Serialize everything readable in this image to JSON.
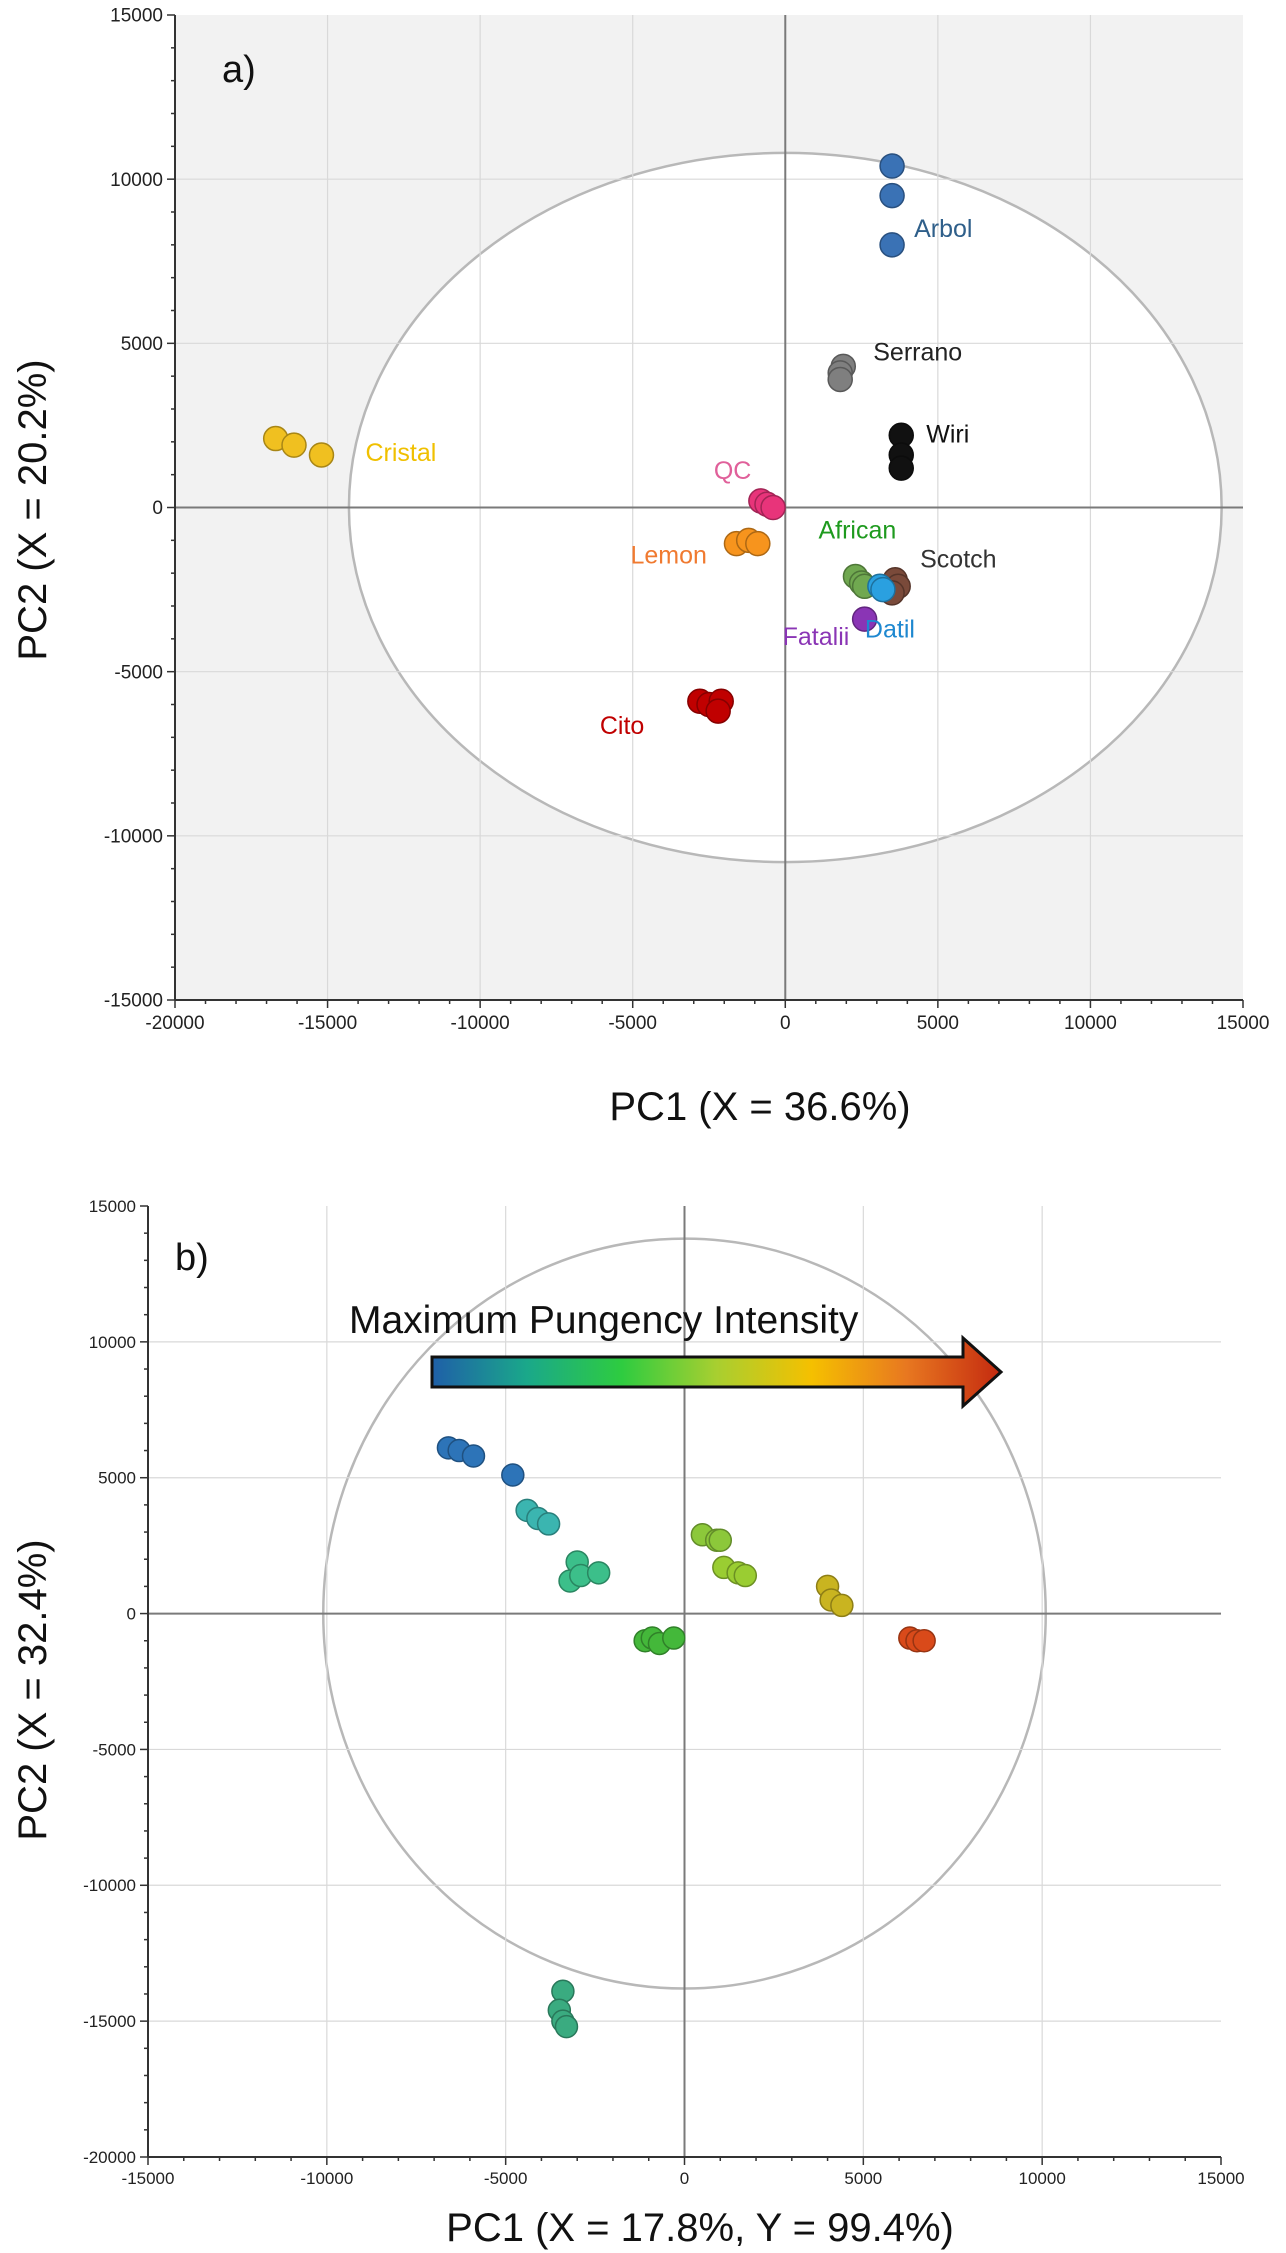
{
  "chart_data": [
    {
      "type": "scatter",
      "panel_label": "a)",
      "xlabel": "PC1 (X = 36.6%)",
      "ylabel": "PC2 (X = 20.2%)",
      "xlim": [
        -20000,
        15000
      ],
      "ylim": [
        -15000,
        15000
      ],
      "xticks": [
        -20000,
        -15000,
        -10000,
        -5000,
        0,
        5000,
        10000,
        15000
      ],
      "yticks": [
        -15000,
        -10000,
        -5000,
        0,
        5000,
        10000,
        15000
      ],
      "grid": true,
      "ellipse": {
        "rx": 14300,
        "ry": 10800
      },
      "series": [
        {
          "name": "Arbol",
          "color": "#3a72b5",
          "label_color": "#2f5f8a",
          "points": [
            [
              3500,
              10400
            ],
            [
              3500,
              9500
            ],
            [
              3500,
              8000
            ]
          ]
        },
        {
          "name": "Serrano",
          "color": "#7f7f7f",
          "label_color": "#222222",
          "points": [
            [
              1900,
              4300
            ],
            [
              1800,
              4100
            ],
            [
              1800,
              3900
            ]
          ]
        },
        {
          "name": "Wiri",
          "color": "#111111",
          "label_color": "#111111",
          "points": [
            [
              3800,
              2200
            ],
            [
              3800,
              1600
            ],
            [
              3800,
              1200
            ]
          ]
        },
        {
          "name": "Cristal",
          "color": "#f0c020",
          "label_color": "#f0c000",
          "points": [
            [
              -16700,
              2100
            ],
            [
              -16100,
              1900
            ],
            [
              -15200,
              1600
            ]
          ]
        },
        {
          "name": "QC",
          "color": "#e8347a",
          "label_color": "#e0609a",
          "points": [
            [
              -800,
              200
            ],
            [
              -600,
              100
            ],
            [
              -400,
              0
            ]
          ]
        },
        {
          "name": "Lemon",
          "color": "#f7941d",
          "label_color": "#f07a30",
          "points": [
            [
              -1600,
              -1100
            ],
            [
              -1200,
              -1000
            ],
            [
              -900,
              -1100
            ]
          ]
        },
        {
          "name": "African",
          "color": "#70a850",
          "label_color": "#1e9a1e",
          "points": [
            [
              2300,
              -2100
            ],
            [
              2500,
              -2300
            ],
            [
              2600,
              -2400
            ]
          ]
        },
        {
          "name": "Scotch",
          "color": "#7a4a3a",
          "label_color": "#333333",
          "points": [
            [
              3600,
              -2200
            ],
            [
              3700,
              -2400
            ],
            [
              3500,
              -2600
            ]
          ]
        },
        {
          "name": "Datil",
          "color": "#2aa0e0",
          "label_color": "#1e88d0",
          "points": [
            [
              3100,
              -2400
            ],
            [
              3200,
              -2500
            ]
          ]
        },
        {
          "name": "Fatalii",
          "color": "#8a35b5",
          "label_color": "#8a35b5",
          "points": [
            [
              2600,
              -3400
            ]
          ]
        },
        {
          "name": "Cito",
          "color": "#c00000",
          "label_color": "#c00000",
          "points": [
            [
              -2800,
              -5900
            ],
            [
              -2500,
              -6000
            ],
            [
              -2100,
              -5900
            ],
            [
              -2200,
              -6200
            ]
          ]
        }
      ]
    },
    {
      "type": "scatter",
      "panel_label": "b)",
      "xlabel": "PC1 (X = 17.8%, Y = 99.4%)",
      "ylabel": "PC2 (X = 32.4%)",
      "xlim": [
        -15000,
        15000
      ],
      "ylim": [
        -20000,
        15000
      ],
      "xticks": [
        -15000,
        -10000,
        -5000,
        0,
        5000,
        10000,
        15000
      ],
      "yticks": [
        -20000,
        -15000,
        -10000,
        -5000,
        0,
        5000,
        10000,
        15000
      ],
      "grid": true,
      "ellipse": {
        "rx": 10100,
        "ry": 13800
      },
      "annotation": "Maximum Pungency Intensity",
      "gradient_colors": [
        "#1f5fa8",
        "#1aa88a",
        "#2ecc40",
        "#a8cf30",
        "#f5c000",
        "#e87820",
        "#c42a10"
      ],
      "series": [
        {
          "color": "#2d74b8",
          "points": [
            [
              -6600,
              6100
            ],
            [
              -6300,
              6000
            ],
            [
              -5900,
              5800
            ]
          ]
        },
        {
          "color": "#2d74b8",
          "points": [
            [
              -4800,
              5100
            ]
          ]
        },
        {
          "color": "#3bb5b0",
          "points": [
            [
              -4400,
              3800
            ],
            [
              -4100,
              3500
            ],
            [
              -3800,
              3300
            ]
          ]
        },
        {
          "color": "#3cbf8a",
          "points": [
            [
              -3000,
              1900
            ],
            [
              -3200,
              1200
            ],
            [
              -2900,
              1400
            ],
            [
              -2400,
              1500
            ]
          ]
        },
        {
          "color": "#3aab80",
          "points": [
            [
              -3400,
              -13900
            ],
            [
              -3500,
              -14600
            ],
            [
              -3400,
              -15000
            ],
            [
              -3300,
              -15200
            ]
          ]
        },
        {
          "color": "#44b83a",
          "points": [
            [
              -1100,
              -1000
            ],
            [
              -900,
              -900
            ],
            [
              -700,
              -1100
            ],
            [
              -300,
              -900
            ]
          ]
        },
        {
          "color": "#8cc83a",
          "points": [
            [
              500,
              2900
            ],
            [
              900,
              2700
            ],
            [
              1000,
              2700
            ]
          ]
        },
        {
          "color": "#9acd32",
          "points": [
            [
              1100,
              1700
            ],
            [
              1500,
              1500
            ],
            [
              1700,
              1400
            ]
          ]
        },
        {
          "color": "#c9b420",
          "points": [
            [
              4000,
              1000
            ],
            [
              4100,
              500
            ],
            [
              4400,
              300
            ]
          ]
        },
        {
          "color": "#d94a1a",
          "points": [
            [
              6300,
              -900
            ],
            [
              6500,
              -1000
            ],
            [
              6700,
              -1000
            ]
          ]
        }
      ]
    }
  ]
}
